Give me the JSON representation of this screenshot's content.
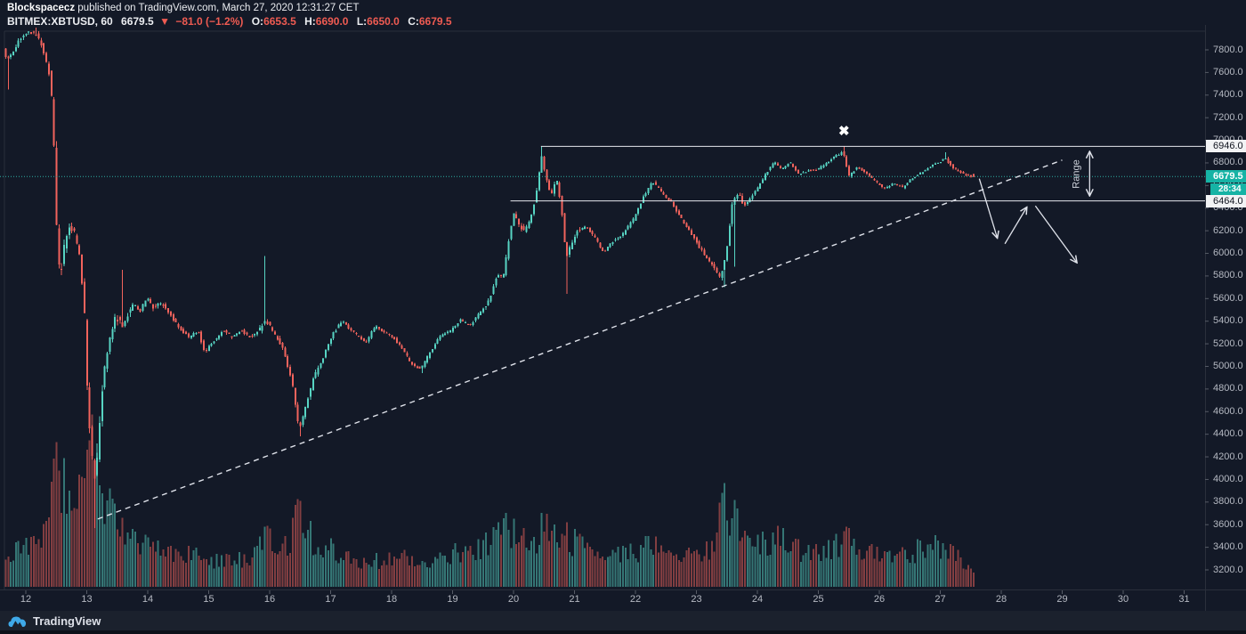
{
  "header": {
    "byline": {
      "author": "Blockspacecz",
      "rest": " published on TradingView.com, March 27, 2020 12:31:27 CET"
    },
    "symbol_line": {
      "symbol": "BITMEX:XBTUSD, 60",
      "last": "6679.5",
      "direction_icon": "▼",
      "change": "−81.0 (−1.2%)",
      "o_label": "O:",
      "o_value": "6653.5",
      "h_label": "H:",
      "h_value": "6690.0",
      "l_label": "L:",
      "l_value": "6650.0",
      "c_label": "C:",
      "c_value": "6679.5"
    }
  },
  "price_labels": {
    "resistance": "6946.0",
    "current": "6679.5",
    "countdown": "28:34",
    "support": "6464.0"
  },
  "annotations": {
    "range_label": "Range",
    "x_marker_glyph": "✖"
  },
  "footer": {
    "brand": "TradingView"
  },
  "colors": {
    "background": "#131927",
    "candle_up": "#57d4c3",
    "candle_down": "#f2635c",
    "header_red": "#ef5b52",
    "axis_text": "#b5b9c2",
    "frame": "#2a2f3b",
    "white_line": "#e6e8ee",
    "teal_label_bg": "#16b3a5",
    "current_price_line": "#2db0a3",
    "annotation_stroke": "#dfe2ea",
    "logo_blue": "#3fa9e8"
  },
  "chart_data": {
    "type": "candlestick",
    "title": "BITMEX:XBTUSD 60-minute chart, March 2020",
    "interval_minutes": 60,
    "current_candle": {
      "open": 6653.5,
      "high": 6690.0,
      "low": 6650.0,
      "close": 6679.5,
      "change": -81.0,
      "change_pct": -1.2
    },
    "y_axis": {
      "min": 3150,
      "max": 8015,
      "tick_step": 200,
      "ticks": [
        7800,
        7600,
        7400,
        7200,
        7000,
        6800,
        6600,
        6400,
        6200,
        6000,
        5800,
        5600,
        5400,
        5200,
        5000,
        4800,
        4600,
        4400,
        4200,
        4000,
        3800,
        3600,
        3400,
        3200
      ]
    },
    "x_axis": {
      "unit": "day of March 2020",
      "day_labels": [
        12,
        13,
        14,
        15,
        16,
        17,
        18,
        19,
        20,
        21,
        22,
        23,
        24,
        25,
        26,
        27,
        28,
        29,
        30,
        31
      ],
      "data_start_day": 11.65,
      "data_end_day": 27.53
    },
    "key_levels": {
      "range_high": 6946.0,
      "range_low": 6464.0,
      "last_price": 6679.5
    },
    "range_lines": [
      {
        "price": 6946.0,
        "from_day": 20.45
      },
      {
        "price": 6464.0,
        "from_day": 19.95
      }
    ],
    "trendline": {
      "style": "dashed",
      "from": {
        "day": 13.18,
        "price": 3650
      },
      "to": {
        "day": 29.0,
        "price": 6825
      }
    },
    "x_marker": {
      "day": 25.42,
      "price": 7075
    },
    "projection_arrows": [
      {
        "from": {
          "day": 27.64,
          "price": 6660
        },
        "to": {
          "day": 27.93,
          "price": 6145
        }
      },
      {
        "from": {
          "day": 28.06,
          "price": 6085
        },
        "to": {
          "day": 28.41,
          "price": 6400
        }
      },
      {
        "from": {
          "day": 28.56,
          "price": 6420
        },
        "to": {
          "day": 29.23,
          "price": 5925
        }
      }
    ],
    "range_measure": {
      "day": 29.45,
      "from_price": 6946.0,
      "to_price": 6464.0,
      "label": "Range"
    },
    "price_path_anchors": [
      [
        11.65,
        7800
      ],
      [
        11.72,
        7720
      ],
      [
        11.8,
        7760
      ],
      [
        11.9,
        7870
      ],
      [
        12.0,
        7930
      ],
      [
        12.1,
        7960
      ],
      [
        12.2,
        7930
      ],
      [
        12.3,
        7820
      ],
      [
        12.4,
        7600
      ],
      [
        12.46,
        7300
      ],
      [
        12.52,
        6300
      ],
      [
        12.58,
        5750
      ],
      [
        12.66,
        6100
      ],
      [
        12.74,
        6250
      ],
      [
        12.82,
        6180
      ],
      [
        12.9,
        6000
      ],
      [
        12.98,
        5500
      ],
      [
        13.04,
        4600
      ],
      [
        13.1,
        4250
      ],
      [
        13.16,
        3950
      ],
      [
        13.22,
        4450
      ],
      [
        13.3,
        4950
      ],
      [
        13.4,
        5250
      ],
      [
        13.5,
        5450
      ],
      [
        13.6,
        5350
      ],
      [
        13.7,
        5480
      ],
      [
        13.8,
        5560
      ],
      [
        13.9,
        5480
      ],
      [
        14.0,
        5620
      ],
      [
        14.1,
        5520
      ],
      [
        14.25,
        5560
      ],
      [
        14.4,
        5450
      ],
      [
        14.55,
        5330
      ],
      [
        14.7,
        5260
      ],
      [
        14.85,
        5320
      ],
      [
        14.95,
        5120
      ],
      [
        15.1,
        5220
      ],
      [
        15.25,
        5320
      ],
      [
        15.4,
        5260
      ],
      [
        15.55,
        5320
      ],
      [
        15.7,
        5260
      ],
      [
        15.85,
        5320
      ],
      [
        15.95,
        5420
      ],
      [
        16.1,
        5280
      ],
      [
        16.25,
        5160
      ],
      [
        16.4,
        4820
      ],
      [
        16.5,
        4440
      ],
      [
        16.6,
        4620
      ],
      [
        16.75,
        4920
      ],
      [
        16.9,
        5080
      ],
      [
        17.05,
        5280
      ],
      [
        17.2,
        5400
      ],
      [
        17.4,
        5300
      ],
      [
        17.6,
        5210
      ],
      [
        17.75,
        5360
      ],
      [
        17.9,
        5300
      ],
      [
        18.05,
        5260
      ],
      [
        18.2,
        5150
      ],
      [
        18.35,
        5020
      ],
      [
        18.5,
        4980
      ],
      [
        18.65,
        5120
      ],
      [
        18.8,
        5260
      ],
      [
        19.0,
        5320
      ],
      [
        19.15,
        5410
      ],
      [
        19.3,
        5360
      ],
      [
        19.45,
        5460
      ],
      [
        19.6,
        5560
      ],
      [
        19.75,
        5800
      ],
      [
        19.85,
        5780
      ],
      [
        19.95,
        6150
      ],
      [
        20.02,
        6350
      ],
      [
        20.1,
        6260
      ],
      [
        20.2,
        6190
      ],
      [
        20.3,
        6290
      ],
      [
        20.4,
        6550
      ],
      [
        20.48,
        6880
      ],
      [
        20.56,
        6650
      ],
      [
        20.64,
        6520
      ],
      [
        20.72,
        6660
      ],
      [
        20.8,
        6450
      ],
      [
        20.88,
        5950
      ],
      [
        20.96,
        6080
      ],
      [
        21.05,
        6190
      ],
      [
        21.2,
        6240
      ],
      [
        21.35,
        6140
      ],
      [
        21.5,
        6010
      ],
      [
        21.65,
        6110
      ],
      [
        21.8,
        6160
      ],
      [
        22.0,
        6310
      ],
      [
        22.15,
        6500
      ],
      [
        22.3,
        6640
      ],
      [
        22.45,
        6540
      ],
      [
        22.6,
        6460
      ],
      [
        22.72,
        6350
      ],
      [
        22.85,
        6240
      ],
      [
        23.0,
        6120
      ],
      [
        23.15,
        5980
      ],
      [
        23.3,
        5880
      ],
      [
        23.42,
        5780
      ],
      [
        23.52,
        6050
      ],
      [
        23.62,
        6480
      ],
      [
        23.72,
        6520
      ],
      [
        23.8,
        6420
      ],
      [
        23.92,
        6500
      ],
      [
        24.05,
        6600
      ],
      [
        24.18,
        6720
      ],
      [
        24.3,
        6810
      ],
      [
        24.42,
        6740
      ],
      [
        24.55,
        6810
      ],
      [
        24.7,
        6700
      ],
      [
        24.85,
        6730
      ],
      [
        25.0,
        6740
      ],
      [
        25.15,
        6800
      ],
      [
        25.3,
        6860
      ],
      [
        25.42,
        6900
      ],
      [
        25.52,
        6680
      ],
      [
        25.65,
        6760
      ],
      [
        25.8,
        6720
      ],
      [
        25.95,
        6640
      ],
      [
        26.1,
        6570
      ],
      [
        26.25,
        6620
      ],
      [
        26.4,
        6580
      ],
      [
        26.55,
        6660
      ],
      [
        26.7,
        6710
      ],
      [
        26.85,
        6760
      ],
      [
        27.0,
        6810
      ],
      [
        27.1,
        6840
      ],
      [
        27.22,
        6760
      ],
      [
        27.35,
        6720
      ],
      [
        27.45,
        6690
      ],
      [
        27.53,
        6679.5
      ]
    ],
    "wick_events": [
      [
        11.72,
        "low",
        7450
      ],
      [
        12.18,
        "high",
        7995
      ],
      [
        13.14,
        "low",
        3570
      ],
      [
        13.59,
        "high",
        5855
      ],
      [
        15.92,
        "high",
        5975
      ],
      [
        16.52,
        "low",
        4380
      ],
      [
        18.5,
        "low",
        4940
      ],
      [
        20.47,
        "high",
        6946
      ],
      [
        20.9,
        "low",
        5640
      ],
      [
        23.45,
        "low",
        5700
      ],
      [
        23.62,
        "low",
        5880
      ],
      [
        25.42,
        "high",
        6946
      ],
      [
        27.07,
        "high",
        6895
      ]
    ],
    "volatility_eras": [
      [
        11.6,
        55
      ],
      [
        12.42,
        150
      ],
      [
        12.62,
        90
      ],
      [
        12.95,
        140
      ],
      [
        13.25,
        90
      ],
      [
        13.7,
        50
      ],
      [
        14.3,
        38
      ],
      [
        15.8,
        55
      ],
      [
        16.35,
        60
      ],
      [
        16.8,
        40
      ],
      [
        17.15,
        30
      ],
      [
        18.3,
        32
      ],
      [
        19.5,
        48
      ],
      [
        19.9,
        55
      ],
      [
        21.1,
        34
      ],
      [
        22.9,
        40
      ],
      [
        23.4,
        55
      ],
      [
        23.75,
        34
      ],
      [
        24.2,
        28
      ],
      [
        25.35,
        40
      ],
      [
        25.6,
        26
      ],
      [
        26.9,
        30
      ],
      [
        27.2,
        26
      ]
    ],
    "volume_anchors": [
      [
        11.65,
        30
      ],
      [
        12.0,
        45
      ],
      [
        12.3,
        70
      ],
      [
        12.45,
        150
      ],
      [
        12.6,
        110
      ],
      [
        12.8,
        90
      ],
      [
        12.95,
        120
      ],
      [
        13.1,
        155
      ],
      [
        13.25,
        110
      ],
      [
        13.45,
        80
      ],
      [
        13.65,
        65
      ],
      [
        13.9,
        50
      ],
      [
        14.2,
        45
      ],
      [
        14.6,
        35
      ],
      [
        15.0,
        30
      ],
      [
        15.4,
        28
      ],
      [
        15.75,
        35
      ],
      [
        15.92,
        75
      ],
      [
        16.1,
        40
      ],
      [
        16.3,
        55
      ],
      [
        16.5,
        85
      ],
      [
        16.7,
        50
      ],
      [
        17.0,
        40
      ],
      [
        17.4,
        32
      ],
      [
        17.8,
        30
      ],
      [
        18.2,
        34
      ],
      [
        18.6,
        30
      ],
      [
        19.0,
        36
      ],
      [
        19.4,
        42
      ],
      [
        19.7,
        55
      ],
      [
        19.9,
        70
      ],
      [
        20.1,
        55
      ],
      [
        20.3,
        45
      ],
      [
        20.5,
        75
      ],
      [
        20.7,
        50
      ],
      [
        20.9,
        55
      ],
      [
        21.2,
        38
      ],
      [
        21.6,
        32
      ],
      [
        22.0,
        40
      ],
      [
        22.3,
        45
      ],
      [
        22.6,
        34
      ],
      [
        22.9,
        38
      ],
      [
        23.2,
        45
      ],
      [
        23.45,
        95
      ],
      [
        23.6,
        75
      ],
      [
        23.8,
        50
      ],
      [
        24.1,
        48
      ],
      [
        24.4,
        55
      ],
      [
        24.7,
        40
      ],
      [
        25.0,
        42
      ],
      [
        25.3,
        50
      ],
      [
        25.45,
        60
      ],
      [
        25.7,
        40
      ],
      [
        26.0,
        34
      ],
      [
        26.3,
        36
      ],
      [
        26.6,
        40
      ],
      [
        26.9,
        45
      ],
      [
        27.1,
        40
      ],
      [
        27.3,
        32
      ],
      [
        27.5,
        22
      ]
    ]
  }
}
